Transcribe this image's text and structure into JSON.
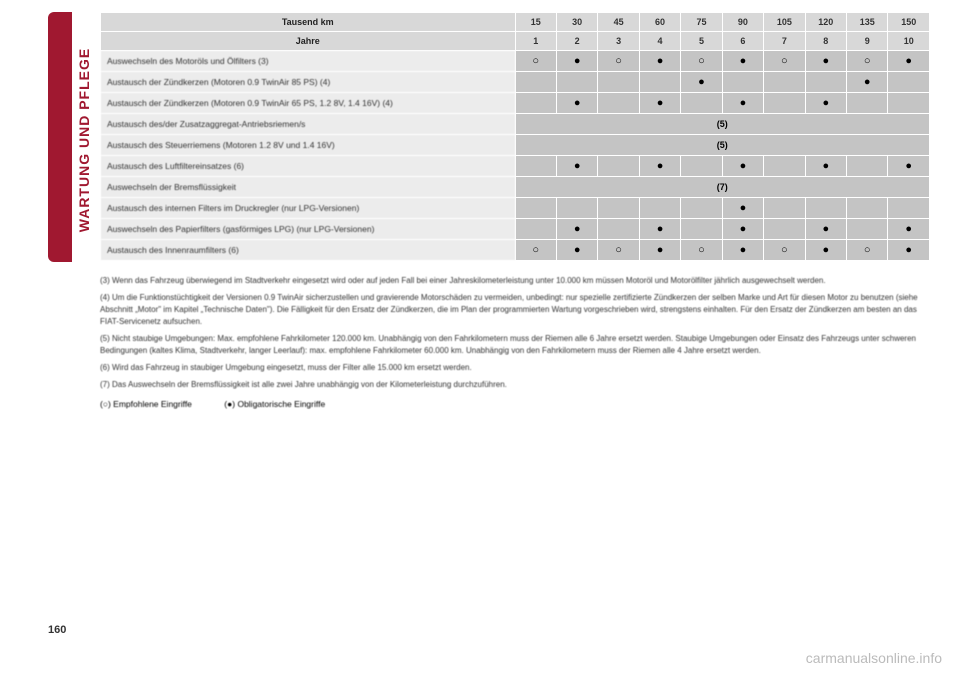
{
  "sidebar": {
    "label": "WARTUNG UND PFLEGE",
    "bg_color": "#a01830"
  },
  "table": {
    "header_row1_label": "Tausend km",
    "header_row1_values": [
      "15",
      "30",
      "45",
      "60",
      "75",
      "90",
      "105",
      "120",
      "135",
      "150"
    ],
    "header_row2_label": "Jahre",
    "header_row2_values": [
      "1",
      "2",
      "3",
      "4",
      "5",
      "6",
      "7",
      "8",
      "9",
      "10"
    ],
    "rows": [
      {
        "label": "Auswechseln des Motoröls und Ölfilters (3)",
        "cells": [
          "○",
          "●",
          "○",
          "●",
          "○",
          "●",
          "○",
          "●",
          "○",
          "●"
        ]
      },
      {
        "label": "Austausch der Zündkerzen (Motoren 0.9 TwinAir 85 PS) (4)",
        "cells": [
          "",
          "",
          "",
          "",
          "●",
          "",
          "",
          "",
          "●",
          ""
        ]
      },
      {
        "label": "Austausch der Zündkerzen\n(Motoren 0.9 TwinAir 65 PS, 1.2 8V, 1.4 16V) (4)",
        "cells": [
          "",
          "●",
          "",
          "●",
          "",
          "●",
          "",
          "●",
          "",
          ""
        ]
      },
      {
        "label": "Austausch des/der Zusatzaggregat-Antriebsriemen/s",
        "note": "(5)"
      },
      {
        "label": "Austausch des Steuerriemens (Motoren 1.2 8V und 1.4 16V)",
        "note": "(5)"
      },
      {
        "label": "Austausch des Luftfiltereinsatzes (6)",
        "cells": [
          "",
          "●",
          "",
          "●",
          "",
          "●",
          "",
          "●",
          "",
          "●"
        ]
      },
      {
        "label": "Auswechseln der Bremsflüssigkeit",
        "note": "(7)"
      },
      {
        "label": "Austausch des internen Filters im Druckregler\n(nur LPG-Versionen)",
        "cells": [
          "",
          "",
          "",
          "",
          "",
          "●",
          "",
          "",
          "",
          ""
        ]
      },
      {
        "label": "Auswechseln des Papierfilters (gasförmiges LPG)\n(nur LPG-Versionen)",
        "cells": [
          "",
          "●",
          "",
          "●",
          "",
          "●",
          "",
          "●",
          "",
          "●"
        ]
      },
      {
        "label": "Austausch des Innenraumfilters (6)",
        "cells": [
          "○",
          "●",
          "○",
          "●",
          "○",
          "●",
          "○",
          "●",
          "○",
          "●"
        ]
      }
    ]
  },
  "footnotes": {
    "f3": "(3) Wenn das Fahrzeug überwiegend im Stadtverkehr eingesetzt wird oder auf jeden Fall bei einer Jahreskilometerleistung unter 10.000 km müssen Motoröl und Motorölfilter jährlich ausgewechselt werden.",
    "f4": "(4) Um die Funktionstüchtigkeit der Versionen 0.9 TwinAir sicherzustellen und gravierende Motorschäden zu vermeiden, unbedingt: nur spezielle zertifizierte Zündkerzen der selben Marke und Art für diesen Motor zu benutzen (siehe Abschnitt „Motor\" im Kapitel „Technische Daten\"). Die Fälligkeit für den Ersatz der Zündkerzen, die im Plan der programmierten Wartung vorgeschrieben wird, strengstens einhalten. Für den Ersatz der Zündkerzen am besten an das FIAT-Servicenetz aufsuchen.",
    "f5": "(5) Nicht staubige Umgebungen: Max. empfohlene Fahrkilometer 120.000 km. Unabhängig von den Fahrkilometern muss der Riemen alle 6 Jahre ersetzt werden. Staubige Umgebungen oder Einsatz des Fahrzeugs unter schweren Bedingungen (kaltes Klima, Stadtverkehr, langer Leerlauf): max. empfohlene Fahrkilometer 60.000 km. Unabhängig von den Fahrkilometern muss der Riemen alle 4 Jahre ersetzt werden.",
    "f6": "(6) Wird das Fahrzeug in staubiger Umgebung eingesetzt, muss der Filter alle 15.000 km ersetzt werden.",
    "f7": "(7) Das Auswechseln der Bremsflüssigkeit ist alle zwei Jahre unabhängig von der Kilometerleistung durchzuführen."
  },
  "legend": {
    "open": "(○) Empfohlene Eingriffe",
    "filled": "(●) Obligatorische Eingriffe"
  },
  "page_number": "160",
  "watermark": "carmanualsonline.info"
}
